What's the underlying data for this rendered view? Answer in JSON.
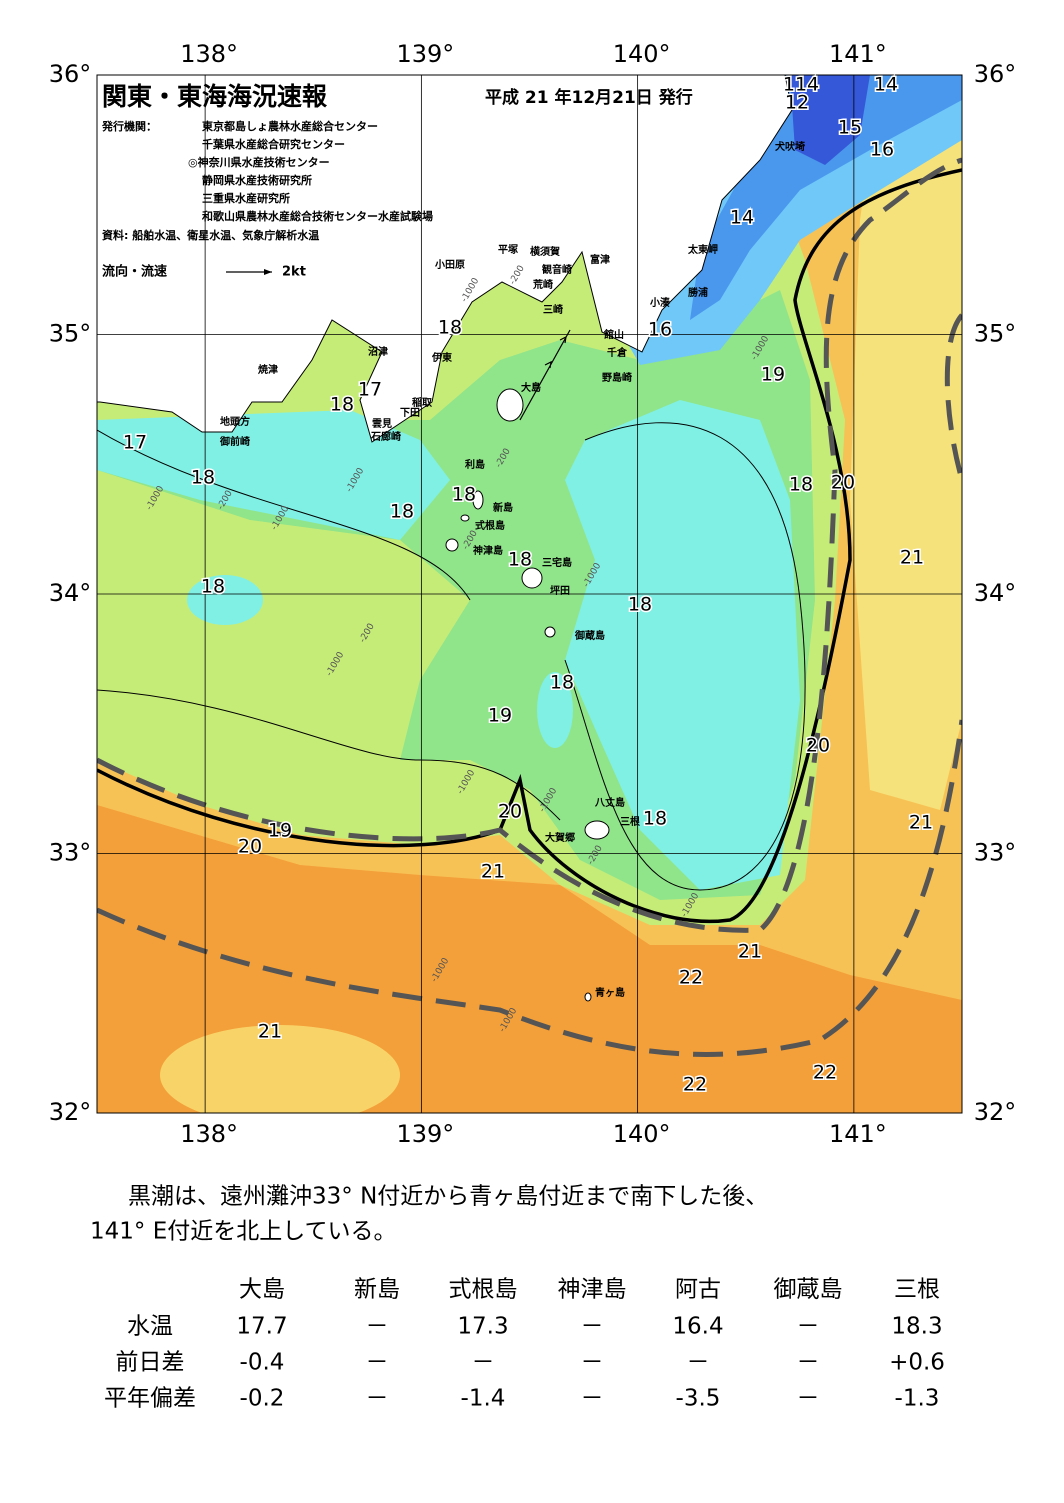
{
  "header": {
    "title": "関東・東海海況速報",
    "date": "平成 21 年12月21日 発行",
    "publisher_label": "発行機関：",
    "publishers": [
      "東京都島しょ農林水産総合センター",
      "千葉県水産総合研究センター",
      "◎神奈川県水産技術センター",
      "静岡県水産技術研究所",
      "三重県水産研究所",
      "和歌山県農林水産総合技術センター水産試験場"
    ],
    "source": "資料: 船舶水温、衛星水温、気象庁解析水温",
    "current_legend": "流向・流速",
    "current_scale": "2kt"
  },
  "map": {
    "xlim": [
      137.5,
      141.5
    ],
    "ylim": [
      32,
      36
    ],
    "lon_ticks": [
      {
        "value": 138,
        "label": "138°"
      },
      {
        "value": 139,
        "label": "139°"
      },
      {
        "value": 140,
        "label": "140°"
      },
      {
        "value": 141,
        "label": "141°"
      }
    ],
    "lat_ticks": [
      {
        "value": 36,
        "label": "36°"
      },
      {
        "value": 35,
        "label": "35°"
      },
      {
        "value": 34,
        "label": "34°"
      },
      {
        "value": 33,
        "label": "33°"
      },
      {
        "value": 32,
        "label": "32°"
      }
    ],
    "contour_labels": [
      "114",
      "14",
      "12",
      "15",
      "16",
      "14",
      "16",
      "18",
      "19",
      "17",
      "18",
      "17",
      "18",
      "18",
      "18",
      "18",
      "20",
      "18",
      "21",
      "18",
      "18",
      "18",
      "19",
      "20",
      "20",
      "18",
      "21",
      "19",
      "20",
      "21",
      "21",
      "22",
      "21",
      "22",
      "22"
    ],
    "depth_labels": [
      "-200",
      "-1000",
      "-1000",
      "-200",
      "-1000",
      "-1000",
      "-200",
      "-1000",
      "-200",
      "-1000",
      "-200",
      "-1000",
      "-1000",
      "-1000",
      "-200",
      "-1000",
      "-1000",
      "-1000"
    ],
    "place_names": [
      "小田原",
      "平塚",
      "横須賀",
      "観音崎",
      "荒崎",
      "富津",
      "太東岬",
      "勝浦",
      "小湊",
      "三崎",
      "館山",
      "千倉",
      "野島崎",
      "沼津",
      "伊東",
      "焼津",
      "大島",
      "稲取",
      "下田",
      "雲見",
      "石廊崎",
      "地頭方",
      "御前崎",
      "利島",
      "新島",
      "式根島",
      "神津島",
      "三宅島",
      "坪田",
      "御蔵島",
      "八丈島",
      "三根",
      "大賀郷",
      "青ヶ島",
      "犬吠埼"
    ]
  },
  "summary": [
    "黒潮は、遠州灘沖33° N付近から青ヶ島付近まで南下した後、",
    "141° E付近を北上している。"
  ],
  "table": {
    "columns": [
      "大島",
      "新島",
      "式根島",
      "神津島",
      "阿古",
      "御蔵島",
      "三根"
    ],
    "rows": [
      {
        "label": "水温",
        "values": [
          "17.7",
          "－",
          "17.3",
          "－",
          "16.4",
          "－",
          "18.3"
        ]
      },
      {
        "label": "前日差",
        "values": [
          "-0.4",
          "－",
          "－",
          "－",
          "－",
          "－",
          "+0.6"
        ]
      },
      {
        "label": "平年偏差",
        "values": [
          "-0.2",
          "－",
          "-1.4",
          "－",
          "-3.5",
          "－",
          "-1.3"
        ]
      }
    ]
  }
}
